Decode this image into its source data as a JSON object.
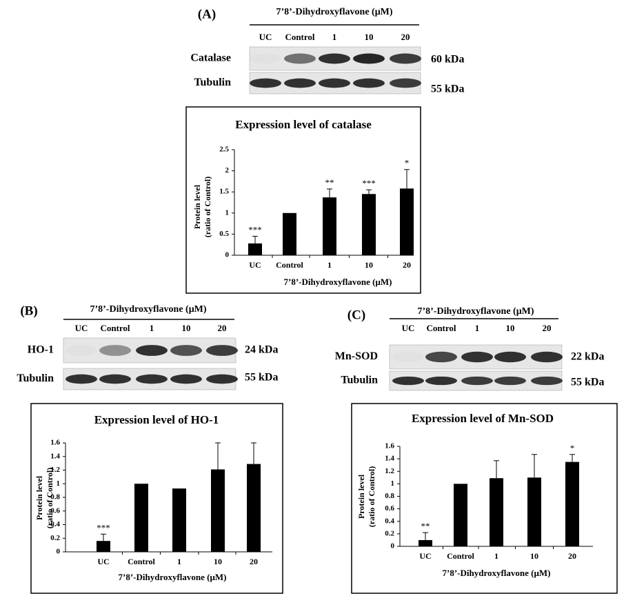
{
  "chart_data": [
    {
      "type": "bar",
      "title": "Expression level of catalase",
      "y_label": [
        "Protein level",
        "(ratio of Control)"
      ],
      "x_label": "7’8’-Dihydroxyflavone (μM)",
      "categories": [
        "UC",
        "Control",
        "1",
        "10",
        "20"
      ],
      "values": [
        0.28,
        1.0,
        1.37,
        1.45,
        1.58
      ],
      "errors": [
        0.17,
        null,
        0.2,
        0.1,
        0.45
      ],
      "annotations": [
        "***",
        null,
        "**",
        "***",
        "*"
      ],
      "color": "#000000",
      "ylim": [
        0,
        2.5
      ],
      "yticks": [
        0,
        0.5,
        1,
        1.5,
        2,
        2.5
      ]
    },
    {
      "type": "bar",
      "title": "Expression level of HO-1",
      "y_label": [
        "Protein level",
        "(ratio of Control)"
      ],
      "x_label": "7’8’-Dihydroxyflavone (μM)",
      "categories": [
        "UC",
        "Control",
        "1",
        "10",
        "20"
      ],
      "values": [
        0.16,
        1.0,
        0.93,
        1.21,
        1.29
      ],
      "errors": [
        0.1,
        null,
        null,
        0.39,
        0.31
      ],
      "annotations": [
        "***",
        null,
        null,
        null,
        null
      ],
      "color": "#000000",
      "ylim": [
        0,
        1.6
      ],
      "yticks": [
        0,
        0.2,
        0.4,
        0.6,
        0.8,
        1,
        1.2,
        1.4,
        1.6
      ]
    },
    {
      "type": "bar",
      "title": "Expression level of Mn-SOD",
      "y_label": [
        "Protein level",
        "(ratio of Control)"
      ],
      "x_label": "7’8’-Dihydroxyflavone (μM)",
      "categories": [
        "UC",
        "Control",
        "1",
        "10",
        "20"
      ],
      "values": [
        0.1,
        1.0,
        1.09,
        1.1,
        1.35
      ],
      "errors": [
        0.12,
        null,
        0.28,
        0.37,
        0.12
      ],
      "annotations": [
        "**",
        null,
        null,
        null,
        "*"
      ],
      "color": "#000000",
      "ylim": [
        0,
        1.6
      ],
      "yticks": [
        0,
        0.2,
        0.4,
        0.6,
        0.8,
        1,
        1.2,
        1.4,
        1.6
      ]
    }
  ],
  "blots": [
    {
      "label": "(A)",
      "treatment": "7’8’-Dihydroxyflavone (μM)",
      "lanes": [
        "UC",
        "Control",
        "1",
        "10",
        "20"
      ],
      "rows": [
        {
          "protein": "Catalase",
          "size": "60 kDa"
        },
        {
          "protein": "Tubulin",
          "size": "55 kDa"
        }
      ]
    },
    {
      "label": "(B)",
      "treatment": "7’8’-Dihydroxyflavone (μM)",
      "lanes": [
        "UC",
        "Control",
        "1",
        "10",
        "20"
      ],
      "rows": [
        {
          "protein": "HO-1",
          "size": "24 kDa"
        },
        {
          "protein": "Tubulin",
          "size": "55 kDa"
        }
      ]
    },
    {
      "label": "(C)",
      "treatment": "7’8’-Dihydroxyflavone (μM)",
      "lanes": [
        "UC",
        "Control",
        "1",
        "10",
        "20"
      ],
      "rows": [
        {
          "protein": "Mn-SOD",
          "size": "22 kDa"
        },
        {
          "protein": "Tubulin",
          "size": "55 kDa"
        }
      ]
    }
  ]
}
